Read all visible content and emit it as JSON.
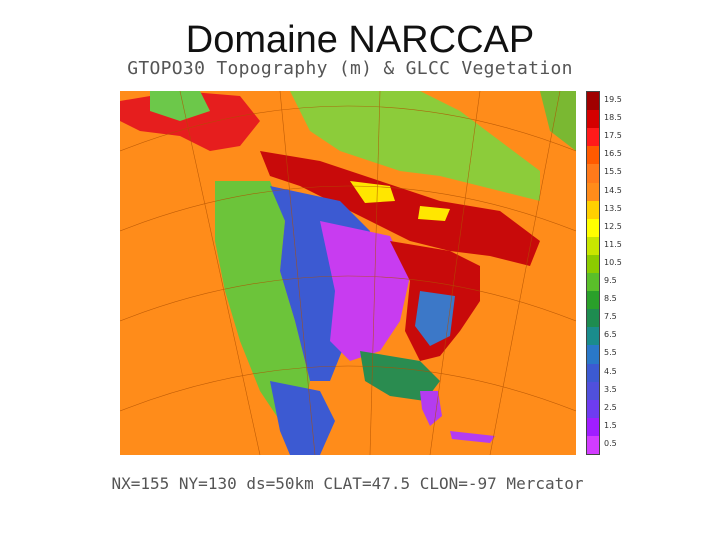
{
  "slide": {
    "title": "Domaine NARCCAP"
  },
  "figure": {
    "plot_title": "GTOPO30 Topography (m) & GLCC Vegetation",
    "footer": "NX=155 NY=130 ds=50km CLAT=47.5 CLON=-97 Mercator",
    "ocean_color": "#ff8c1a"
  },
  "colorbar": {
    "labels": [
      "19.5",
      "18.5",
      "17.5",
      "16.5",
      "15.5",
      "14.5",
      "13.5",
      "12.5",
      "11.5",
      "10.5",
      "9.5",
      "8.5",
      "7.5",
      "6.5",
      "5.5",
      "4.5",
      "3.5",
      "2.5",
      "1.5",
      "0.5"
    ],
    "colors": [
      "#a00000",
      "#d40000",
      "#ff1a1a",
      "#ff5a00",
      "#ff7a1a",
      "#ff8c1a",
      "#ffd000",
      "#ffff00",
      "#c8e600",
      "#8ccc00",
      "#5abf2a",
      "#2aa02a",
      "#1e8c50",
      "#1a8c8c",
      "#2a78c8",
      "#3c5ad2",
      "#5050dc",
      "#6e3cf0",
      "#a01eff",
      "#d23cff"
    ]
  }
}
